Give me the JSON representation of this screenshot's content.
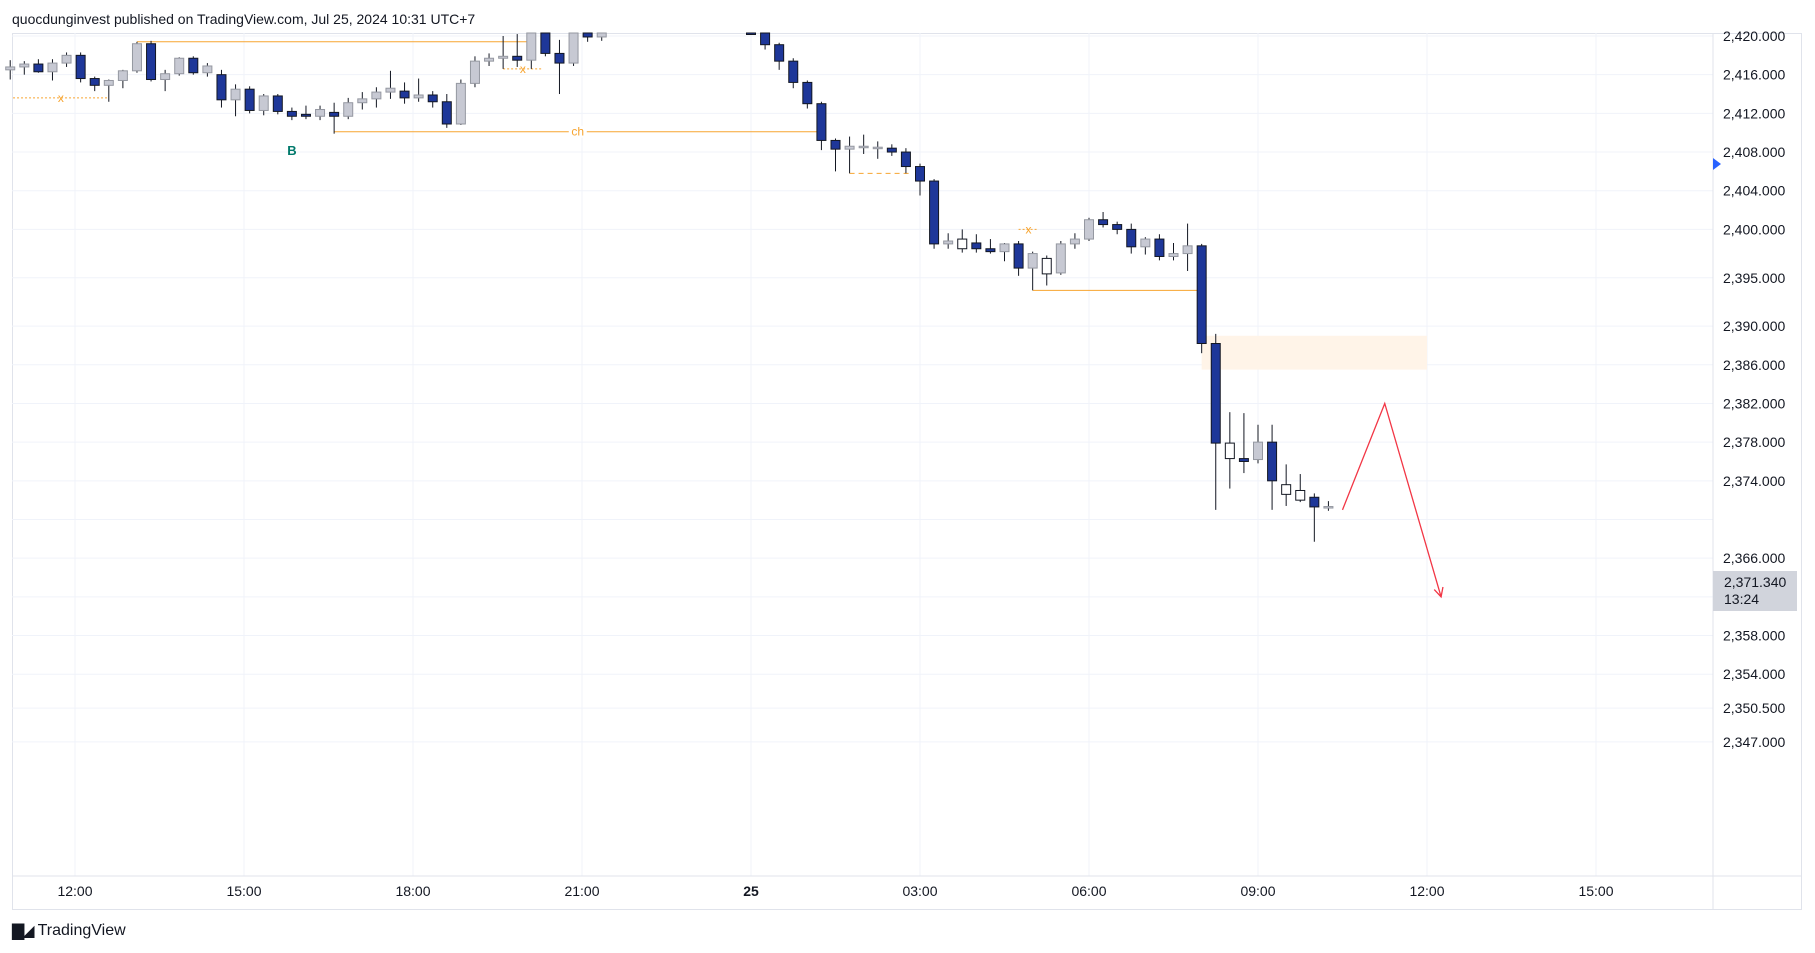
{
  "header": {
    "publisher_text": "quocdunginvest published on TradingView.com, Jul 25, 2024 10:31 UTC+7"
  },
  "footer": {
    "brand": "TradingView",
    "logo_icon": "tradingview-logo-icon"
  },
  "colors": {
    "bear_body": "#1e3799",
    "bull_body": "#ffffff",
    "prev_body": "#c7c9d3",
    "wick": "#131722",
    "level_line": "#f7a531",
    "zone_fill": "#fff4e8",
    "arrow": "#f23645"
  },
  "current_price": {
    "value": "2,371.340",
    "countdown": "13:24"
  },
  "chart_data": {
    "type": "candlestick",
    "title": "",
    "y_axis": {
      "ticks": [
        2420,
        2416,
        2412,
        2408,
        2404,
        2400,
        2395,
        2390,
        2386,
        2382,
        2378,
        2374,
        2370,
        2366,
        2362,
        2358,
        2354,
        2350.5,
        2347
      ],
      "tick_labels": [
        "2,420.000",
        "2,416.000",
        "2,412.000",
        "2,408.000",
        "2,404.000",
        "2,400.000",
        "2,395.000",
        "2,390.000",
        "2,386.000",
        "2,382.000",
        "2,378.000",
        "2,374.000",
        "",
        "2,366.000",
        "2,362.000",
        "2,358.000",
        "2,354.000",
        "2,350.500",
        "2,347.000"
      ],
      "range": [
        2345.5,
        2421.5
      ]
    },
    "x_axis": {
      "labels": [
        {
          "t": 12,
          "text": "12:00"
        },
        {
          "t": 15,
          "text": "15:00"
        },
        {
          "t": 18,
          "text": "18:00"
        },
        {
          "t": 21,
          "text": "21:00"
        },
        {
          "t": 24,
          "text": "25",
          "bold": true
        },
        {
          "t": 27,
          "text": "03:00"
        },
        {
          "t": 30,
          "text": "06:00"
        },
        {
          "t": 33,
          "text": "09:00"
        },
        {
          "t": 36,
          "text": "12:00"
        },
        {
          "t": 39,
          "text": "15:00"
        }
      ],
      "range_hours": [
        10.8,
        42.0
      ]
    },
    "candles": [
      {
        "t": 10.85,
        "o": 2416.5,
        "h": 2417.5,
        "l": 2415.5,
        "c": 2416.8,
        "s": "p"
      },
      {
        "t": 11.1,
        "o": 2416.8,
        "h": 2417.4,
        "l": 2416.0,
        "c": 2417.1,
        "s": "p"
      },
      {
        "t": 11.35,
        "o": 2417.1,
        "h": 2417.6,
        "l": 2416.2,
        "c": 2416.3,
        "s": "b"
      },
      {
        "t": 11.6,
        "o": 2416.3,
        "h": 2417.6,
        "l": 2415.4,
        "c": 2417.2,
        "s": "p"
      },
      {
        "t": 11.85,
        "o": 2417.2,
        "h": 2418.3,
        "l": 2416.8,
        "c": 2418.0,
        "s": "p"
      },
      {
        "t": 12.1,
        "o": 2418.0,
        "h": 2418.3,
        "l": 2415.2,
        "c": 2415.6,
        "s": "b"
      },
      {
        "t": 12.35,
        "o": 2415.6,
        "h": 2415.8,
        "l": 2414.3,
        "c": 2414.9,
        "s": "b"
      },
      {
        "t": 12.6,
        "o": 2414.9,
        "h": 2415.5,
        "l": 2413.2,
        "c": 2415.4,
        "s": "p"
      },
      {
        "t": 12.85,
        "o": 2415.4,
        "h": 2416.5,
        "l": 2414.6,
        "c": 2416.4,
        "s": "p"
      },
      {
        "t": 13.1,
        "o": 2416.4,
        "h": 2419.4,
        "l": 2416.2,
        "c": 2419.2,
        "s": "p"
      },
      {
        "t": 13.35,
        "o": 2419.2,
        "h": 2419.5,
        "l": 2415.3,
        "c": 2415.5,
        "s": "b"
      },
      {
        "t": 13.6,
        "o": 2415.5,
        "h": 2416.5,
        "l": 2414.3,
        "c": 2416.1,
        "s": "p"
      },
      {
        "t": 13.85,
        "o": 2416.1,
        "h": 2417.8,
        "l": 2415.9,
        "c": 2417.7,
        "s": "p"
      },
      {
        "t": 14.1,
        "o": 2417.7,
        "h": 2417.9,
        "l": 2416.0,
        "c": 2416.2,
        "s": "b"
      },
      {
        "t": 14.35,
        "o": 2416.2,
        "h": 2417.2,
        "l": 2415.8,
        "c": 2416.9,
        "s": "p"
      },
      {
        "t": 14.6,
        "o": 2416.0,
        "h": 2416.5,
        "l": 2412.6,
        "c": 2413.4,
        "s": "b"
      },
      {
        "t": 14.85,
        "o": 2413.4,
        "h": 2415.0,
        "l": 2411.7,
        "c": 2414.5,
        "s": "p"
      },
      {
        "t": 15.1,
        "o": 2414.5,
        "h": 2414.8,
        "l": 2412.0,
        "c": 2412.3,
        "s": "b"
      },
      {
        "t": 15.35,
        "o": 2412.3,
        "h": 2414.0,
        "l": 2411.8,
        "c": 2413.8,
        "s": "p"
      },
      {
        "t": 15.6,
        "o": 2413.8,
        "h": 2414.0,
        "l": 2411.9,
        "c": 2412.2,
        "s": "b"
      },
      {
        "t": 15.85,
        "o": 2412.2,
        "h": 2412.6,
        "l": 2411.3,
        "c": 2411.7,
        "s": "b"
      },
      {
        "t": 16.1,
        "o": 2411.9,
        "h": 2412.8,
        "l": 2411.4,
        "c": 2411.7,
        "s": "b"
      },
      {
        "t": 16.35,
        "o": 2411.7,
        "h": 2412.8,
        "l": 2411.3,
        "c": 2412.4,
        "s": "p"
      },
      {
        "t": 16.6,
        "o": 2412.1,
        "h": 2413.1,
        "l": 2409.9,
        "c": 2411.7,
        "s": "b"
      },
      {
        "t": 16.85,
        "o": 2411.7,
        "h": 2413.6,
        "l": 2411.4,
        "c": 2413.1,
        "s": "p"
      },
      {
        "t": 17.1,
        "o": 2413.1,
        "h": 2414.2,
        "l": 2412.4,
        "c": 2413.5,
        "s": "p"
      },
      {
        "t": 17.35,
        "o": 2413.5,
        "h": 2414.7,
        "l": 2412.6,
        "c": 2414.2,
        "s": "p"
      },
      {
        "t": 17.6,
        "o": 2414.2,
        "h": 2416.4,
        "l": 2413.5,
        "c": 2414.6,
        "s": "p"
      },
      {
        "t": 17.85,
        "o": 2414.3,
        "h": 2415.2,
        "l": 2413.0,
        "c": 2413.6,
        "s": "b"
      },
      {
        "t": 18.1,
        "o": 2413.6,
        "h": 2415.6,
        "l": 2413.2,
        "c": 2413.9,
        "s": "p"
      },
      {
        "t": 18.35,
        "o": 2413.9,
        "h": 2414.3,
        "l": 2412.6,
        "c": 2413.2,
        "s": "b"
      },
      {
        "t": 18.6,
        "o": 2413.2,
        "h": 2414.0,
        "l": 2410.5,
        "c": 2410.9,
        "s": "b"
      },
      {
        "t": 18.85,
        "o": 2410.9,
        "h": 2415.5,
        "l": 2410.8,
        "c": 2415.1,
        "s": "p"
      },
      {
        "t": 19.1,
        "o": 2415.1,
        "h": 2417.9,
        "l": 2414.7,
        "c": 2417.4,
        "s": "p"
      },
      {
        "t": 19.35,
        "o": 2417.4,
        "h": 2418.2,
        "l": 2416.9,
        "c": 2417.7,
        "s": "p"
      },
      {
        "t": 19.6,
        "o": 2417.7,
        "h": 2420.0,
        "l": 2416.6,
        "c": 2417.9,
        "s": "p"
      },
      {
        "t": 19.85,
        "o": 2417.9,
        "h": 2420.2,
        "l": 2416.8,
        "c": 2417.5,
        "s": "b"
      },
      {
        "t": 20.1,
        "o": 2417.5,
        "h": 2421.2,
        "l": 2416.6,
        "c": 2421.0,
        "s": "p"
      },
      {
        "t": 20.35,
        "o": 2421.0,
        "h": 2421.5,
        "l": 2417.9,
        "c": 2418.2,
        "s": "b"
      },
      {
        "t": 20.6,
        "o": 2418.2,
        "h": 2419.6,
        "l": 2414.0,
        "c": 2417.2,
        "s": "b"
      },
      {
        "t": 20.85,
        "o": 2417.2,
        "h": 2421.5,
        "l": 2416.9,
        "c": 2421.4,
        "s": "p"
      },
      {
        "t": 21.1,
        "o": 2421.4,
        "h": 2421.5,
        "l": 2419.4,
        "c": 2419.9,
        "s": "b"
      },
      {
        "t": 21.35,
        "o": 2419.9,
        "h": 2421.5,
        "l": 2419.5,
        "c": 2421.2,
        "s": "p"
      },
      {
        "t": 24.0,
        "o": 2421.5,
        "h": 2421.5,
        "l": 2420.5,
        "c": 2421.0,
        "s": "b"
      },
      {
        "t": 24.25,
        "o": 2421.0,
        "h": 2421.5,
        "l": 2418.6,
        "c": 2419.1,
        "s": "b"
      },
      {
        "t": 24.5,
        "o": 2419.1,
        "h": 2419.3,
        "l": 2416.5,
        "c": 2417.4,
        "s": "b"
      },
      {
        "t": 24.75,
        "o": 2417.4,
        "h": 2417.7,
        "l": 2414.6,
        "c": 2415.2,
        "s": "b"
      },
      {
        "t": 25.0,
        "o": 2415.2,
        "h": 2415.4,
        "l": 2412.5,
        "c": 2413.0,
        "s": "b"
      },
      {
        "t": 25.25,
        "o": 2413.0,
        "h": 2413.2,
        "l": 2408.2,
        "c": 2409.2,
        "s": "b"
      },
      {
        "t": 25.5,
        "o": 2409.2,
        "h": 2409.4,
        "l": 2406.0,
        "c": 2408.3,
        "s": "b"
      },
      {
        "t": 25.75,
        "o": 2408.3,
        "h": 2409.6,
        "l": 2405.8,
        "c": 2408.6,
        "s": "p"
      },
      {
        "t": 26.0,
        "o": 2408.6,
        "h": 2409.8,
        "l": 2407.8,
        "c": 2408.5,
        "s": "p"
      },
      {
        "t": 26.25,
        "o": 2408.5,
        "h": 2409.1,
        "l": 2407.3,
        "c": 2408.4,
        "s": "p"
      },
      {
        "t": 26.5,
        "o": 2408.4,
        "h": 2408.8,
        "l": 2407.6,
        "c": 2408.0,
        "s": "b"
      },
      {
        "t": 26.75,
        "o": 2408.0,
        "h": 2408.4,
        "l": 2405.8,
        "c": 2406.5,
        "s": "b"
      },
      {
        "t": 27.0,
        "o": 2406.5,
        "h": 2406.8,
        "l": 2403.5,
        "c": 2405.0,
        "s": "b"
      },
      {
        "t": 27.25,
        "o": 2405.0,
        "h": 2405.2,
        "l": 2398.0,
        "c": 2398.5,
        "s": "b"
      },
      {
        "t": 27.5,
        "o": 2398.5,
        "h": 2399.6,
        "l": 2398.0,
        "c": 2398.8,
        "s": "p"
      },
      {
        "t": 27.75,
        "o": 2398.0,
        "h": 2400.0,
        "l": 2397.6,
        "c": 2399.0,
        "s": "w"
      },
      {
        "t": 28.0,
        "o": 2398.6,
        "h": 2399.5,
        "l": 2397.6,
        "c": 2398.0,
        "s": "b"
      },
      {
        "t": 28.25,
        "o": 2398.0,
        "h": 2399.0,
        "l": 2397.5,
        "c": 2397.7,
        "s": "b"
      },
      {
        "t": 28.5,
        "o": 2397.7,
        "h": 2398.6,
        "l": 2396.7,
        "c": 2398.5,
        "s": "p"
      },
      {
        "t": 28.75,
        "o": 2398.5,
        "h": 2398.8,
        "l": 2395.2,
        "c": 2396.0,
        "s": "b"
      },
      {
        "t": 29.0,
        "o": 2396.0,
        "h": 2397.7,
        "l": 2393.7,
        "c": 2397.5,
        "s": "p"
      },
      {
        "t": 29.25,
        "o": 2395.4,
        "h": 2397.3,
        "l": 2394.2,
        "c": 2397.0,
        "s": "w"
      },
      {
        "t": 29.5,
        "o": 2395.5,
        "h": 2398.8,
        "l": 2395.3,
        "c": 2398.5,
        "s": "p"
      },
      {
        "t": 29.75,
        "o": 2398.5,
        "h": 2399.6,
        "l": 2398.0,
        "c": 2399.0,
        "s": "p"
      },
      {
        "t": 30.0,
        "o": 2399.0,
        "h": 2401.2,
        "l": 2398.8,
        "c": 2401.0,
        "s": "p"
      },
      {
        "t": 30.25,
        "o": 2401.0,
        "h": 2401.8,
        "l": 2400.2,
        "c": 2400.5,
        "s": "b"
      },
      {
        "t": 30.5,
        "o": 2400.5,
        "h": 2400.8,
        "l": 2399.5,
        "c": 2400.0,
        "s": "b"
      },
      {
        "t": 30.75,
        "o": 2400.0,
        "h": 2400.6,
        "l": 2397.5,
        "c": 2398.2,
        "s": "b"
      },
      {
        "t": 31.0,
        "o": 2398.2,
        "h": 2399.2,
        "l": 2397.4,
        "c": 2399.0,
        "s": "p"
      },
      {
        "t": 31.25,
        "o": 2399.0,
        "h": 2399.5,
        "l": 2396.8,
        "c": 2397.2,
        "s": "b"
      },
      {
        "t": 31.5,
        "o": 2397.2,
        "h": 2398.6,
        "l": 2396.8,
        "c": 2397.5,
        "s": "p"
      },
      {
        "t": 31.75,
        "o": 2397.5,
        "h": 2400.6,
        "l": 2395.7,
        "c": 2398.3,
        "s": "p"
      },
      {
        "t": 32.0,
        "o": 2398.3,
        "h": 2398.5,
        "l": 2387.2,
        "c": 2388.2,
        "s": "b"
      },
      {
        "t": 32.25,
        "o": 2388.2,
        "h": 2389.2,
        "l": 2371.0,
        "c": 2377.9,
        "s": "b"
      },
      {
        "t": 32.5,
        "o": 2376.3,
        "h": 2381.1,
        "l": 2373.2,
        "c": 2377.9,
        "s": "w"
      },
      {
        "t": 32.75,
        "o": 2376.3,
        "h": 2381.0,
        "l": 2374.8,
        "c": 2376.0,
        "s": "b"
      },
      {
        "t": 33.0,
        "o": 2376.2,
        "h": 2379.8,
        "l": 2375.8,
        "c": 2378.0,
        "s": "p"
      },
      {
        "t": 33.25,
        "o": 2378.0,
        "h": 2379.8,
        "l": 2371.0,
        "c": 2374.0,
        "s": "b"
      },
      {
        "t": 33.5,
        "o": 2372.6,
        "h": 2375.7,
        "l": 2371.4,
        "c": 2373.6,
        "s": "w"
      },
      {
        "t": 33.75,
        "o": 2373.0,
        "h": 2374.7,
        "l": 2371.8,
        "c": 2372.0,
        "s": "w"
      },
      {
        "t": 34.0,
        "o": 2372.3,
        "h": 2372.7,
        "l": 2367.7,
        "c": 2371.3,
        "s": "b"
      },
      {
        "t": 34.25,
        "o": 2371.3,
        "h": 2371.9,
        "l": 2370.9,
        "c": 2371.34,
        "s": "p"
      }
    ],
    "levels": [
      {
        "type": "solid",
        "price": 2419.4,
        "t_start": 13.1,
        "t_end": 20.1
      },
      {
        "type": "solid",
        "price": 2410.1,
        "t_start": 16.6,
        "t_end": 25.25,
        "label": "ch"
      },
      {
        "type": "dotted",
        "price": 2413.6,
        "t_start": 10.9,
        "t_end": 12.6,
        "label": "x"
      },
      {
        "type": "dotted",
        "price": 2416.6,
        "t_start": 19.6,
        "t_end": 20.3,
        "label": "x"
      },
      {
        "type": "dashed",
        "price": 2405.8,
        "t_start": 25.75,
        "t_end": 26.8
      },
      {
        "type": "dotted",
        "price": 2400.0,
        "t_start": 28.75,
        "t_end": 29.1,
        "label": "x"
      },
      {
        "type": "solid",
        "price": 2393.7,
        "t_start": 29.0,
        "t_end": 32.0
      }
    ],
    "zone": {
      "price_top": 2389.0,
      "price_bottom": 2385.5,
      "t_start": 32.0,
      "t_end": 36.0
    },
    "annotations": [
      {
        "text": "B",
        "t": 15.85,
        "price": 2408.2
      }
    ],
    "projection": [
      {
        "t": 34.5,
        "price": 2371.0
      },
      {
        "t": 35.25,
        "price": 2382.0
      },
      {
        "t": 36.25,
        "price": 2362.0
      }
    ]
  }
}
